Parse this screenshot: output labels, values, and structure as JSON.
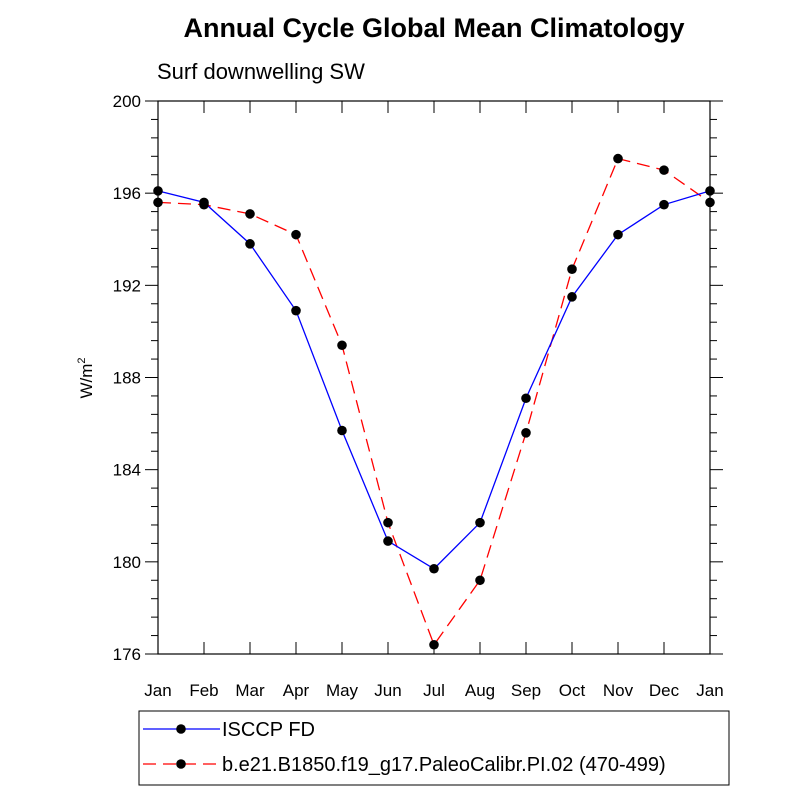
{
  "chart_data": {
    "type": "line",
    "title": "Annual Cycle Global Mean Climatology",
    "subtitle": "Surf downwelling SW",
    "ylabel_base": "W/m",
    "ylabel_sup": "2",
    "xlabel": "",
    "categories": [
      "Jan",
      "Feb",
      "Mar",
      "Apr",
      "May",
      "Jun",
      "Jul",
      "Aug",
      "Sep",
      "Oct",
      "Nov",
      "Dec",
      "Jan"
    ],
    "ylim": [
      176,
      200
    ],
    "yticks": [
      176,
      180,
      184,
      188,
      192,
      196,
      200
    ],
    "yminor_step": 0.8,
    "series": [
      {
        "name": "ISCCP FD",
        "color": "#0000ff",
        "dash": "solid",
        "marker": "filled-circle",
        "values": [
          196.1,
          195.6,
          193.8,
          190.9,
          185.7,
          180.9,
          179.7,
          181.7,
          187.1,
          191.5,
          194.2,
          195.5,
          196.1
        ]
      },
      {
        "name": "b.e21.B1850.f19_g17.PaleoCalibr.PI.02 (470-499)",
        "color": "#ff0000",
        "dash": "dashed",
        "marker": "filled-circle",
        "values": [
          195.6,
          195.5,
          195.1,
          194.2,
          189.4,
          181.7,
          176.4,
          179.2,
          185.6,
          192.7,
          197.5,
          197.0,
          195.6
        ]
      }
    ],
    "legend_position": "bottom-left"
  }
}
